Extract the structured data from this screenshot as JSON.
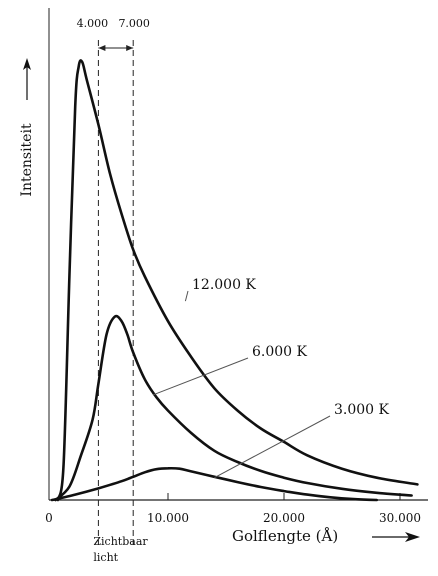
{
  "chart_data": {
    "type": "line",
    "xlabel": "Golflengte (Å)",
    "ylabel": "Intensiteit",
    "xlim": [
      -1000,
      32000
    ],
    "ylim": [
      0,
      1.0
    ],
    "x_ticks": [
      {
        "value": 0,
        "label": "0"
      },
      {
        "value": 10000,
        "label": "10.000"
      },
      {
        "value": 20000,
        "label": "20.000"
      },
      {
        "value": 30000,
        "label": "30.000"
      }
    ],
    "visible_band": {
      "from": 4000,
      "to": 7000,
      "from_label": "4.000",
      "to_label": "7.000",
      "label_line1": "Zichtbaar",
      "label_line2": "licht"
    },
    "series": [
      {
        "name": "12.000 K",
        "label_anchor": [
          11500,
          0.445
        ],
        "x": [
          500,
          1000,
          1500,
          2000,
          2300,
          2600,
          3000,
          4000,
          5000,
          6000,
          7000,
          8000,
          10000,
          12000,
          14000,
          16000,
          18000,
          20000,
          22000,
          25000,
          28000,
          31500
        ],
        "y": [
          0.0,
          0.08,
          0.5,
          0.88,
          0.97,
          0.98,
          0.94,
          0.84,
          0.73,
          0.64,
          0.56,
          0.5,
          0.4,
          0.32,
          0.25,
          0.2,
          0.16,
          0.13,
          0.1,
          0.07,
          0.05,
          0.035
        ]
      },
      {
        "name": "6.000 K",
        "label_anchor": [
          8700,
          0.235
        ],
        "x": [
          300,
          1500,
          2500,
          3500,
          4000,
          4700,
          5400,
          6000,
          6500,
          7000,
          8000,
          9000,
          10000,
          12000,
          14000,
          16000,
          18000,
          20000,
          22000,
          25000,
          28000,
          31000
        ],
        "y": [
          0.0,
          0.03,
          0.1,
          0.18,
          0.26,
          0.37,
          0.41,
          0.4,
          0.37,
          0.33,
          0.27,
          0.23,
          0.2,
          0.15,
          0.11,
          0.085,
          0.065,
          0.05,
          0.038,
          0.025,
          0.016,
          0.01
        ]
      },
      {
        "name": "3.000 K",
        "label_anchor": [
          14000,
          0.05
        ],
        "x": [
          0,
          2000,
          4000,
          6000,
          7000,
          8000,
          9000,
          10000,
          11000,
          12000,
          14000,
          16000,
          18000,
          20000,
          22000,
          24000,
          26000,
          28000
        ],
        "y": [
          0.0,
          0.012,
          0.026,
          0.042,
          0.052,
          0.062,
          0.069,
          0.071,
          0.07,
          0.064,
          0.052,
          0.04,
          0.029,
          0.02,
          0.012,
          0.006,
          0.002,
          0.0
        ]
      }
    ]
  }
}
